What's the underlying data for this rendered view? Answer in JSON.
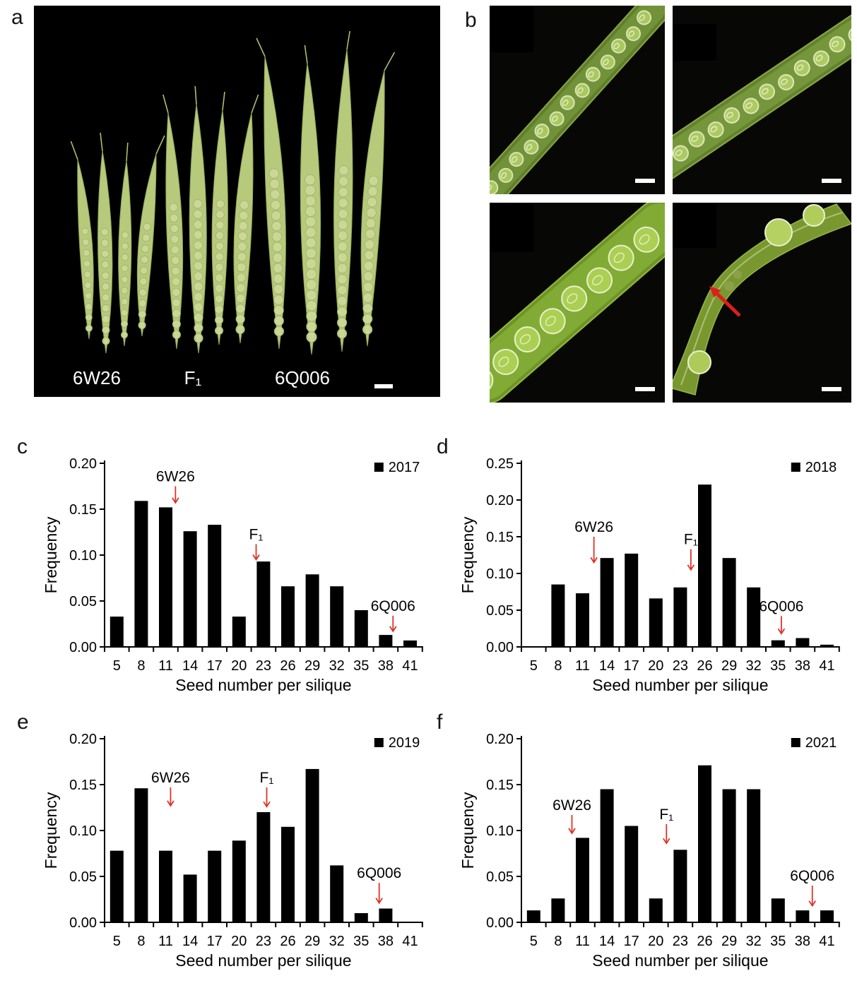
{
  "panels": {
    "a": {
      "letter": "a",
      "labels": {
        "g1": "6W26",
        "g2": "F₁",
        "g3": "6Q006"
      }
    },
    "b": {
      "letter": "b"
    },
    "c": {
      "letter": "c"
    },
    "d": {
      "letter": "d"
    },
    "e": {
      "letter": "e"
    },
    "f": {
      "letter": "f"
    }
  },
  "colors": {
    "bar": "#000000",
    "axis": "#000000",
    "annotation_arrow": "#dd3328",
    "photo_background": "#000000",
    "scale_bar": "#ffffff",
    "red_arrow": "#dd1f1a"
  },
  "chart_data": [
    {
      "panel": "c",
      "type": "bar",
      "legend": "2017",
      "legend_position": "top-right",
      "xlabel": "Seed number per silique",
      "ylabel": "Frequency",
      "categories": [
        5,
        8,
        11,
        14,
        17,
        20,
        23,
        26,
        29,
        32,
        35,
        38,
        41
      ],
      "values": [
        0.033,
        0.159,
        0.152,
        0.126,
        0.133,
        0.033,
        0.093,
        0.066,
        0.079,
        0.066,
        0.04,
        0.013,
        0.007
      ],
      "ylim": [
        0,
        0.2
      ],
      "yticks": [
        0.0,
        0.05,
        0.1,
        0.15,
        0.2
      ],
      "grid": false,
      "annotations": [
        {
          "label": "6W26",
          "x": 12.2,
          "tail": 0.175,
          "tip": 0.157
        },
        {
          "label": "F₁",
          "x": 22.1,
          "tail": 0.112,
          "tip": 0.095
        },
        {
          "label": "6Q006",
          "x": 38.9,
          "tail": 0.034,
          "tip": 0.017
        }
      ]
    },
    {
      "panel": "d",
      "type": "bar",
      "legend": "2018",
      "legend_position": "top-right",
      "xlabel": "Seed number per silique",
      "ylabel": "Frequency",
      "categories": [
        5,
        8,
        11,
        14,
        17,
        20,
        23,
        26,
        29,
        32,
        35,
        38,
        41
      ],
      "values": [
        0,
        0.085,
        0.073,
        0.121,
        0.127,
        0.066,
        0.081,
        0.221,
        0.121,
        0.081,
        0.009,
        0.012,
        0.003
      ],
      "ylim": [
        0,
        0.25
      ],
      "yticks": [
        0.0,
        0.05,
        0.1,
        0.15,
        0.2,
        0.25
      ],
      "grid": false,
      "annotations": [
        {
          "label": "6W26",
          "x": 12.4,
          "tail": 0.15,
          "tip": 0.115
        },
        {
          "label": "F₁",
          "x": 24.3,
          "tail": 0.133,
          "tip": 0.105
        },
        {
          "label": "6Q006",
          "x": 35.4,
          "tail": 0.042,
          "tip": 0.018
        }
      ]
    },
    {
      "panel": "e",
      "type": "bar",
      "legend": "2019",
      "legend_position": "top-right",
      "xlabel": "Seed number per silique",
      "ylabel": "Frequency",
      "categories": [
        5,
        8,
        11,
        14,
        17,
        20,
        23,
        26,
        29,
        32,
        35,
        38,
        41
      ],
      "values": [
        0.078,
        0.146,
        0.078,
        0.052,
        0.078,
        0.089,
        0.12,
        0.104,
        0.167,
        0.062,
        0.01,
        0.015,
        0
      ],
      "ylim": [
        0,
        0.2
      ],
      "yticks": [
        0.0,
        0.05,
        0.1,
        0.15,
        0.2
      ],
      "grid": false,
      "annotations": [
        {
          "label": "6W26",
          "x": 11.6,
          "tail": 0.147,
          "tip": 0.127
        },
        {
          "label": "F₁",
          "x": 23.4,
          "tail": 0.147,
          "tip": 0.126
        },
        {
          "label": "6Q006",
          "x": 37.2,
          "tail": 0.043,
          "tip": 0.021
        }
      ]
    },
    {
      "panel": "f",
      "type": "bar",
      "legend": "2021",
      "legend_position": "top-right",
      "xlabel": "Seed number per silique",
      "ylabel": "Frequency",
      "categories": [
        5,
        8,
        11,
        14,
        17,
        20,
        23,
        26,
        29,
        32,
        35,
        38,
        41
      ],
      "values": [
        0.013,
        0.026,
        0.092,
        0.145,
        0.105,
        0.026,
        0.079,
        0.171,
        0.145,
        0.145,
        0.026,
        0.013,
        0.013
      ],
      "ylim": [
        0,
        0.2
      ],
      "yticks": [
        0.0,
        0.05,
        0.1,
        0.15,
        0.2
      ],
      "grid": false,
      "annotations": [
        {
          "label": "6W26",
          "x": 9.7,
          "tail": 0.117,
          "tip": 0.097
        },
        {
          "label": "F₁",
          "x": 21.3,
          "tail": 0.107,
          "tip": 0.086
        },
        {
          "label": "6Q006",
          "x": 39.2,
          "tail": 0.04,
          "tip": 0.018
        }
      ]
    }
  ]
}
